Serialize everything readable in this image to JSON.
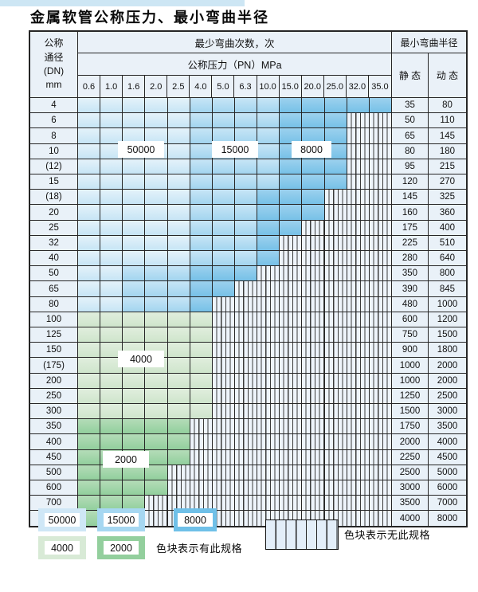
{
  "title": "金属软管公称压力、最小弯曲半径",
  "table": {
    "header": {
      "dn_lines": [
        "公称",
        "通径",
        "(DN)",
        "mm"
      ],
      "cycles": "最少弯曲次数，次",
      "pressure": "公称压力（PN）MPa",
      "radius": "最小弯曲半径",
      "static": "静 态",
      "dynamic": "动 态",
      "pressures": [
        "0.6",
        "1.0",
        "1.6",
        "2.0",
        "2.5",
        "4.0",
        "5.0",
        "6.3",
        "10.0",
        "15.0",
        "20.0",
        "25.0",
        "32.0",
        "35.0"
      ]
    },
    "zone_legend": {
      "L": "50000",
      "M": "15000",
      "D": "8000",
      "g": "4000",
      "G": "2000",
      ".": "无此规格"
    },
    "rows": [
      {
        "dn": "4",
        "cells": "LLLLLMMMMDDDDD",
        "static": "35",
        "dynamic": "80"
      },
      {
        "dn": "6",
        "cells": "LLLLLMMMMDDD..",
        "static": "50",
        "dynamic": "110"
      },
      {
        "dn": "8",
        "cells": "LLLLLMMMMDDD..",
        "static": "65",
        "dynamic": "145"
      },
      {
        "dn": "10",
        "cells": "LLLLLMMMMDDD..",
        "static": "80",
        "dynamic": "180"
      },
      {
        "dn": "(12)",
        "cells": "LLLLLMMMMDDD..",
        "static": "95",
        "dynamic": "215"
      },
      {
        "dn": "15",
        "cells": "LLLLLMMMMDDD..",
        "static": "120",
        "dynamic": "270"
      },
      {
        "dn": "(18)",
        "cells": "LLLLLMMMDDD...",
        "static": "145",
        "dynamic": "325"
      },
      {
        "dn": "20",
        "cells": "LLLLLMMMDDD...",
        "static": "160",
        "dynamic": "360"
      },
      {
        "dn": "25",
        "cells": "LLLLLMMMDD....",
        "static": "175",
        "dynamic": "400"
      },
      {
        "dn": "32",
        "cells": "LLLLLMMMD.....",
        "static": "225",
        "dynamic": "510"
      },
      {
        "dn": "40",
        "cells": "LLLLLMMMD.....",
        "static": "280",
        "dynamic": "640"
      },
      {
        "dn": "50",
        "cells": "LLMMMDDD......",
        "static": "350",
        "dynamic": "800"
      },
      {
        "dn": "65",
        "cells": "LLMMMDD.......",
        "static": "390",
        "dynamic": "845"
      },
      {
        "dn": "80",
        "cells": "LLMMMD........",
        "static": "480",
        "dynamic": "1000"
      },
      {
        "dn": "100",
        "cells": "gggggg........",
        "static": "600",
        "dynamic": "1200"
      },
      {
        "dn": "125",
        "cells": "gggggg........",
        "static": "750",
        "dynamic": "1500"
      },
      {
        "dn": "150",
        "cells": "gggggg........",
        "static": "900",
        "dynamic": "1800"
      },
      {
        "dn": "(175)",
        "cells": "gggggg........",
        "static": "1000",
        "dynamic": "2000"
      },
      {
        "dn": "200",
        "cells": "gggggg........",
        "static": "1000",
        "dynamic": "2000"
      },
      {
        "dn": "250",
        "cells": "gggggg........",
        "static": "1250",
        "dynamic": "2500"
      },
      {
        "dn": "300",
        "cells": "gggggg........",
        "static": "1500",
        "dynamic": "3000"
      },
      {
        "dn": "350",
        "cells": "GGGGG.........",
        "static": "1750",
        "dynamic": "3500"
      },
      {
        "dn": "400",
        "cells": "GGGGG.........",
        "static": "2000",
        "dynamic": "4000"
      },
      {
        "dn": "450",
        "cells": "GGGGG.........",
        "static": "2250",
        "dynamic": "4500"
      },
      {
        "dn": "500",
        "cells": "GGGG..........",
        "static": "2500",
        "dynamic": "5000"
      },
      {
        "dn": "600",
        "cells": "GGGG..........",
        "static": "3000",
        "dynamic": "6000"
      },
      {
        "dn": "700",
        "cells": "GGG...........",
        "static": "3500",
        "dynamic": "7000"
      },
      {
        "dn": "800",
        "cells": "GGG...........",
        "static": "4000",
        "dynamic": "8000"
      }
    ]
  },
  "overlays": [
    "50000",
    "15000",
    "8000",
    "4000",
    "2000"
  ],
  "legend": {
    "items": [
      {
        "label": "50000",
        "color": "#cfe7f6"
      },
      {
        "label": "15000",
        "color": "#a6d7f1"
      },
      {
        "label": "8000",
        "color": "#6fc0e8"
      },
      {
        "label": "4000",
        "color": "#d8ead6"
      },
      {
        "label": "2000",
        "color": "#93cf9d"
      }
    ],
    "has_spec_text": "色块表示有此规格",
    "no_spec_text": "色块表示无此规格"
  },
  "colors": {
    "blue_50000": "#cfe7f6",
    "blue_15000": "#a6d7f1",
    "blue_8000": "#6fc0e8",
    "green_4000": "#d8ead6",
    "green_2000": "#93cf9d",
    "striped_fill": "#eef4fb",
    "cell_header_bg": "#e9f1f8",
    "grid_line": "#262626",
    "top_strip": "#cde6f4"
  }
}
